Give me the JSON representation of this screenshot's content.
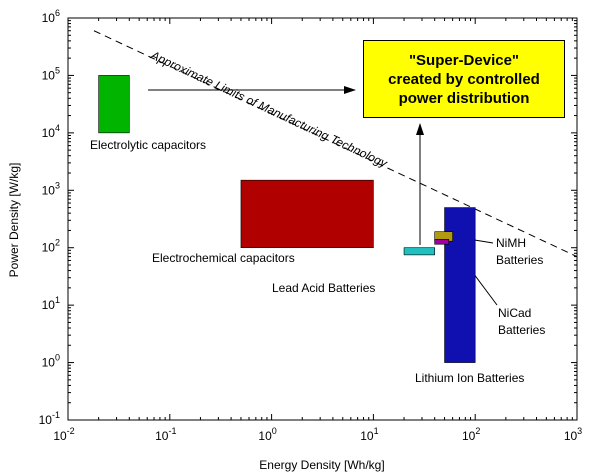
{
  "chart_data": {
    "type": "ragone",
    "xlabel": "Energy Density [Wh/kg]",
    "ylabel": "Power Density [W/kg]",
    "xscale": "log",
    "yscale": "log",
    "xlim": [
      0.01,
      1000
    ],
    "ylim": [
      0.1,
      1000000
    ],
    "xticks": [
      {
        "value": 0.01,
        "label": "10",
        "exponent": "-2"
      },
      {
        "value": 0.1,
        "label": "10",
        "exponent": "-1"
      },
      {
        "value": 1,
        "label": "10",
        "exponent": "0"
      },
      {
        "value": 10,
        "label": "10",
        "exponent": "1"
      },
      {
        "value": 100,
        "label": "10",
        "exponent": "2"
      },
      {
        "value": 1000,
        "label": "10",
        "exponent": "3"
      }
    ],
    "yticks": [
      {
        "value": 0.1,
        "label": "10",
        "exponent": "-1"
      },
      {
        "value": 1,
        "label": "10",
        "exponent": "0"
      },
      {
        "value": 10,
        "label": "10",
        "exponent": "1"
      },
      {
        "value": 100,
        "label": "10",
        "exponent": "2"
      },
      {
        "value": 1000,
        "label": "10",
        "exponent": "3"
      },
      {
        "value": 10000,
        "label": "10",
        "exponent": "4"
      },
      {
        "value": 100000,
        "label": "10",
        "exponent": "5"
      },
      {
        "value": 1000000,
        "label": "10",
        "exponent": "6"
      }
    ],
    "series": [
      {
        "name": "Electrolytic capacitors",
        "color": "#00b400",
        "x": [
          0.02,
          0.04
        ],
        "y": [
          10000,
          100000
        ]
      },
      {
        "name": "Electrochemical capacitors",
        "color": "#b00000",
        "x": [
          0.5,
          10
        ],
        "y": [
          100,
          1500
        ]
      },
      {
        "name": "Lead Acid Batteries",
        "color": "#20c0c0",
        "x": [
          20,
          40
        ],
        "y": [
          75,
          100
        ]
      },
      {
        "name": "Lithium Ion Batteries",
        "color": "#1010b0",
        "x": [
          50,
          100
        ],
        "y": [
          1,
          500
        ]
      },
      {
        "name": "NiMH Batteries",
        "color": "#b09a10",
        "x": [
          40,
          60
        ],
        "y": [
          130,
          190
        ]
      },
      {
        "name": "NiCad Batteries",
        "color": "#a000a0",
        "x": [
          40,
          55
        ],
        "y": [
          115,
          140
        ]
      }
    ],
    "limit_line": {
      "label": "Approximate Limits of Manufacturing Technology",
      "x": [
        0.018,
        1000
      ],
      "y": [
        600000,
        70
      ]
    },
    "callout": [
      "\"Super-Device\"",
      "created by controlled",
      "power distribution"
    ]
  }
}
